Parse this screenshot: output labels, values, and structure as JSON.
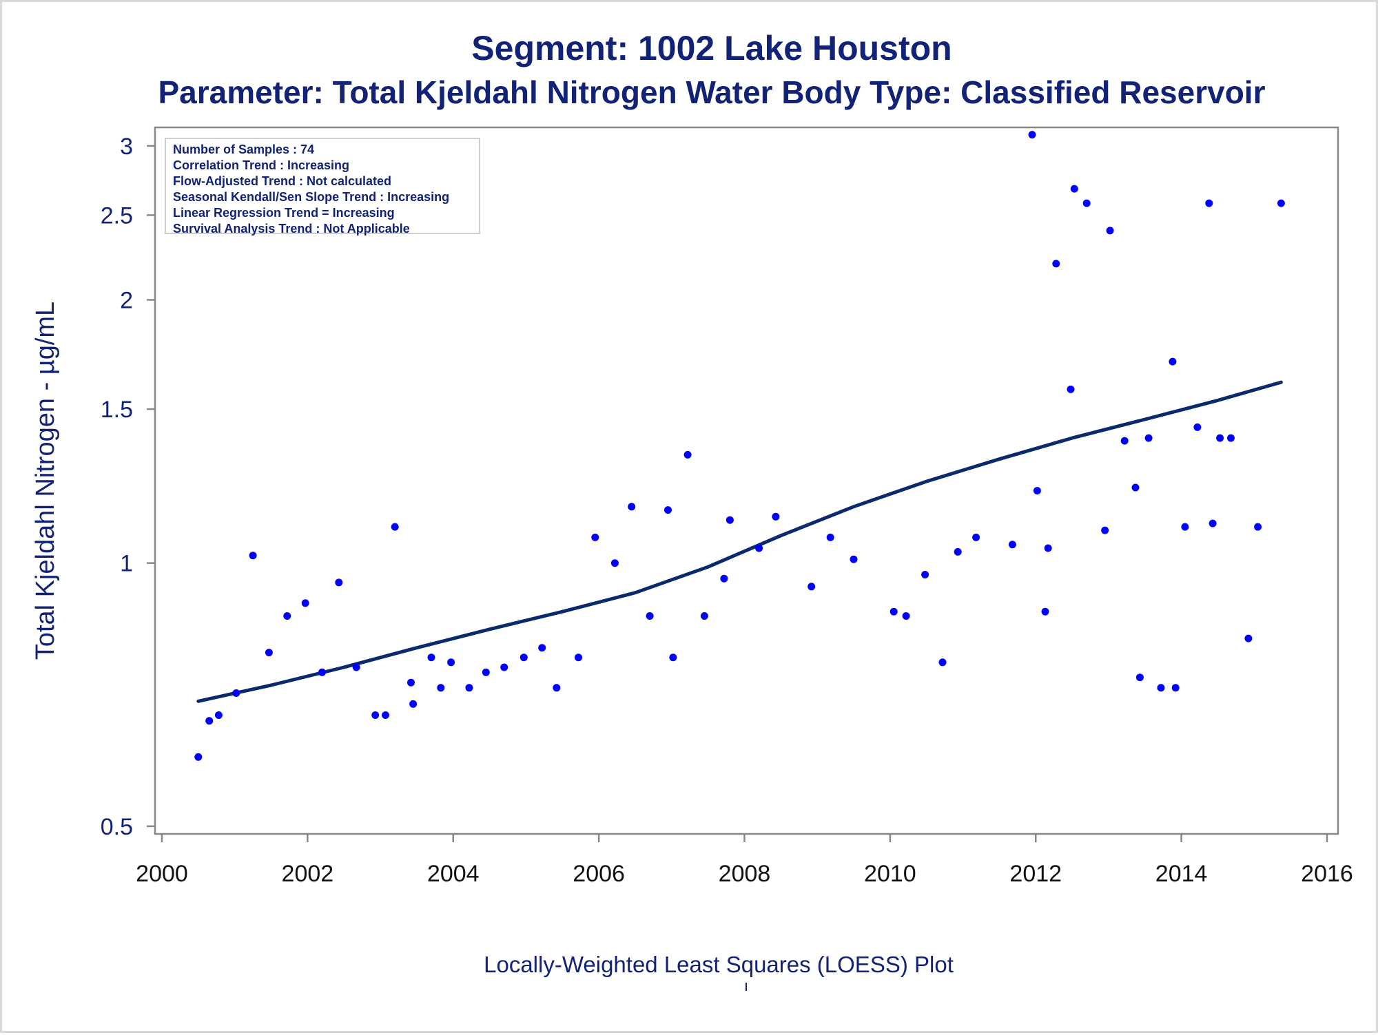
{
  "chart_data": {
    "type": "scatter",
    "title": "Segment: 1002  Lake Houston",
    "subtitle": "Parameter: Total Kjeldahl Nitrogen   Water Body Type: Classified Reservoir",
    "xlabel": "",
    "ylabel": "Total Kjeldahl Nitrogen -  µg/mL",
    "footnote": "Locally-Weighted Least Squares (LOESS) Plot",
    "yscale": "log",
    "xlim": [
      2000,
      2016
    ],
    "ylim": [
      0.49,
      3.15
    ],
    "x_ticks": [
      2000,
      2002,
      2004,
      2006,
      2008,
      2010,
      2012,
      2014,
      2016
    ],
    "y_ticks": [
      0.5,
      1,
      1.5,
      2,
      2.5,
      3
    ],
    "grid": false,
    "legend": "none",
    "colors": {
      "points": "#0000ff",
      "trend": "#0a2a6e",
      "text": "#112277",
      "axis": "#888888"
    },
    "stats_box": {
      "position": "top-left",
      "lines": [
        "Number of Samples : 74",
        "Correlation Trend : Increasing",
        "Flow-Adjusted Trend : Not calculated",
        "Seasonal Kendall/Sen Slope Trend : Increasing",
        "Linear Regression Trend = Increasing",
        "Survival Analysis Trend : Not Applicable"
      ]
    },
    "series": [
      {
        "type": "scatter",
        "x": [
          2000.5,
          2000.65,
          2000.78,
          2001.02,
          2001.25,
          2001.47,
          2001.72,
          2001.97,
          2002.2,
          2002.43,
          2002.67,
          2002.93,
          2003.07,
          2003.2,
          2003.42,
          2003.45,
          2003.7,
          2003.83,
          2003.97,
          2004.22,
          2004.45,
          2004.7,
          2004.97,
          2005.22,
          2005.42,
          2005.72,
          2005.95,
          2006.22,
          2006.45,
          2006.7,
          2006.95,
          2007.02,
          2007.22,
          2007.45,
          2007.72,
          2007.8,
          2008.2,
          2008.43,
          2008.92,
          2009.18,
          2009.5,
          2010.05,
          2010.22,
          2010.48,
          2010.72,
          2010.93,
          2011.18,
          2011.68,
          2011.95,
          2012.02,
          2012.13,
          2012.17,
          2012.28,
          2012.48,
          2012.53,
          2012.7,
          2012.95,
          2013.02,
          2013.22,
          2013.37,
          2013.43,
          2013.55,
          2013.72,
          2013.88,
          2013.92,
          2014.05,
          2014.22,
          2014.38,
          2014.43,
          2014.53,
          2014.68,
          2014.92,
          2015.05,
          2015.37
        ],
        "y": [
          0.6,
          0.66,
          0.67,
          0.71,
          1.02,
          0.79,
          0.87,
          0.9,
          0.75,
          0.95,
          0.76,
          0.67,
          0.67,
          1.1,
          0.73,
          0.69,
          0.78,
          0.72,
          0.77,
          0.72,
          0.75,
          0.76,
          0.78,
          0.8,
          0.72,
          0.78,
          1.07,
          1.0,
          1.16,
          0.87,
          1.15,
          0.78,
          1.33,
          0.87,
          0.96,
          1.12,
          1.04,
          1.13,
          0.94,
          1.07,
          1.01,
          0.88,
          0.87,
          0.97,
          0.77,
          1.03,
          1.07,
          1.05,
          3.09,
          1.21,
          0.88,
          1.04,
          2.2,
          1.58,
          2.68,
          2.58,
          1.09,
          2.4,
          1.38,
          1.22,
          0.74,
          1.39,
          0.72,
          1.7,
          0.72,
          1.1,
          1.43,
          2.58,
          1.11,
          1.39,
          1.39,
          0.82,
          1.1,
          2.58
        ]
      },
      {
        "type": "line",
        "x": [
          2000.5,
          2001.5,
          2002.5,
          2003.5,
          2004.5,
          2005.5,
          2006.5,
          2007.5,
          2008.5,
          2009.5,
          2010.5,
          2011.5,
          2012.5,
          2013.5,
          2014.5,
          2015.37
        ],
        "y": [
          0.695,
          0.725,
          0.76,
          0.8,
          0.84,
          0.88,
          0.925,
          0.99,
          1.075,
          1.16,
          1.24,
          1.315,
          1.39,
          1.46,
          1.535,
          1.61
        ]
      }
    ]
  }
}
